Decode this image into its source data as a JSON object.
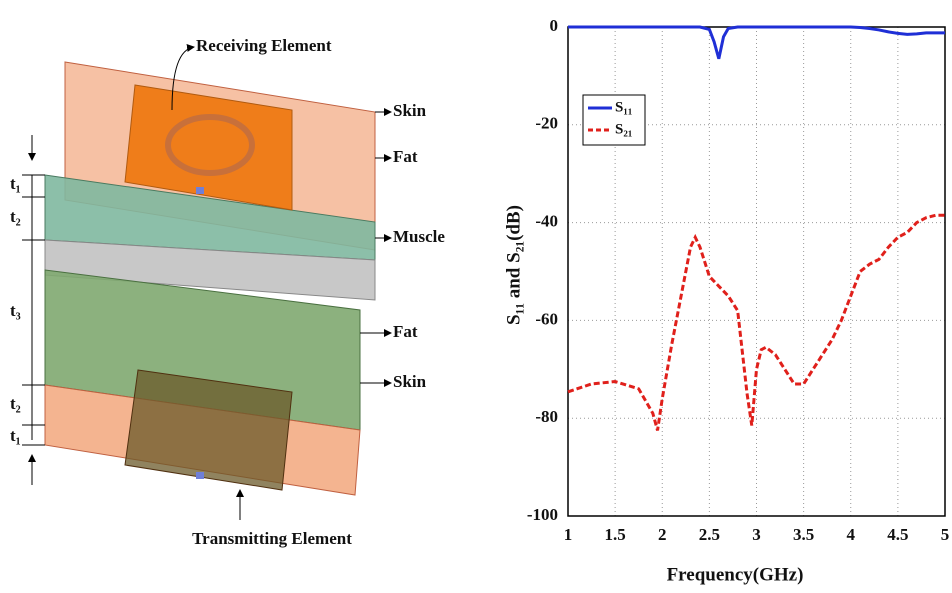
{
  "diagram": {
    "labels": [
      "Receiving Element",
      "Skin",
      "Fat",
      "Muscle",
      "Fat",
      "Skin",
      "Transmitting Element"
    ],
    "dimensions": [
      "t₁",
      "t₂",
      "t₃",
      "t₂",
      "t₁"
    ]
  },
  "chart_data": {
    "type": "line",
    "xlabel": "Frequency(GHz)",
    "ylabel": "S₁₁ and S₂₁(dB)",
    "x": [
      1,
      1.25,
      1.5,
      1.75,
      1.9,
      1.95,
      2.0,
      2.1,
      2.2,
      2.3,
      2.35,
      2.4,
      2.5,
      2.55,
      2.6,
      2.65,
      2.7,
      2.8,
      2.9,
      2.95,
      3.0,
      3.05,
      3.1,
      3.2,
      3.3,
      3.4,
      3.5,
      3.6,
      3.7,
      3.8,
      3.9,
      4.0,
      4.1,
      4.2,
      4.3,
      4.4,
      4.5,
      4.6,
      4.7,
      4.8,
      4.9,
      5.0
    ],
    "series": [
      {
        "name": "S₁₁",
        "color": "#1f2fd6",
        "dash": false,
        "values": [
          0,
          0,
          0,
          0,
          0,
          0,
          0,
          0,
          0,
          0,
          0,
          0,
          -0.5,
          -3,
          -6.5,
          -2,
          -0.3,
          0,
          0,
          0,
          0,
          0,
          0,
          0,
          0,
          0,
          0,
          0,
          0,
          0,
          0,
          0,
          -0.1,
          -0.3,
          -0.6,
          -1,
          -1.3,
          -1.5,
          -1.4,
          -1.2,
          -1.2,
          -1.2
        ]
      },
      {
        "name": "S₂₁",
        "color": "#e0201b",
        "dash": true,
        "values": [
          -74.6,
          -73,
          -72.5,
          -74,
          -79,
          -82.5,
          -76,
          -65,
          -55,
          -45,
          -43,
          -45,
          -51,
          -52,
          -53,
          -54,
          -55,
          -58,
          -75,
          -81.5,
          -70,
          -66,
          -65.5,
          -67,
          -70,
          -73,
          -73,
          -70,
          -67,
          -64,
          -60,
          -55,
          -50,
          -48.5,
          -47.5,
          -45,
          -43,
          -42,
          -40,
          -39,
          -38.5,
          -38.5
        ]
      }
    ],
    "xlim": [
      1,
      5
    ],
    "xticks": [
      1,
      1.5,
      2,
      2.5,
      3,
      3.5,
      4,
      4.5,
      5
    ],
    "ylim": [
      -100,
      0
    ],
    "yticks": [
      -100,
      -80,
      -60,
      -40,
      -20,
      0
    ],
    "grid": true,
    "legend": "upper left"
  }
}
